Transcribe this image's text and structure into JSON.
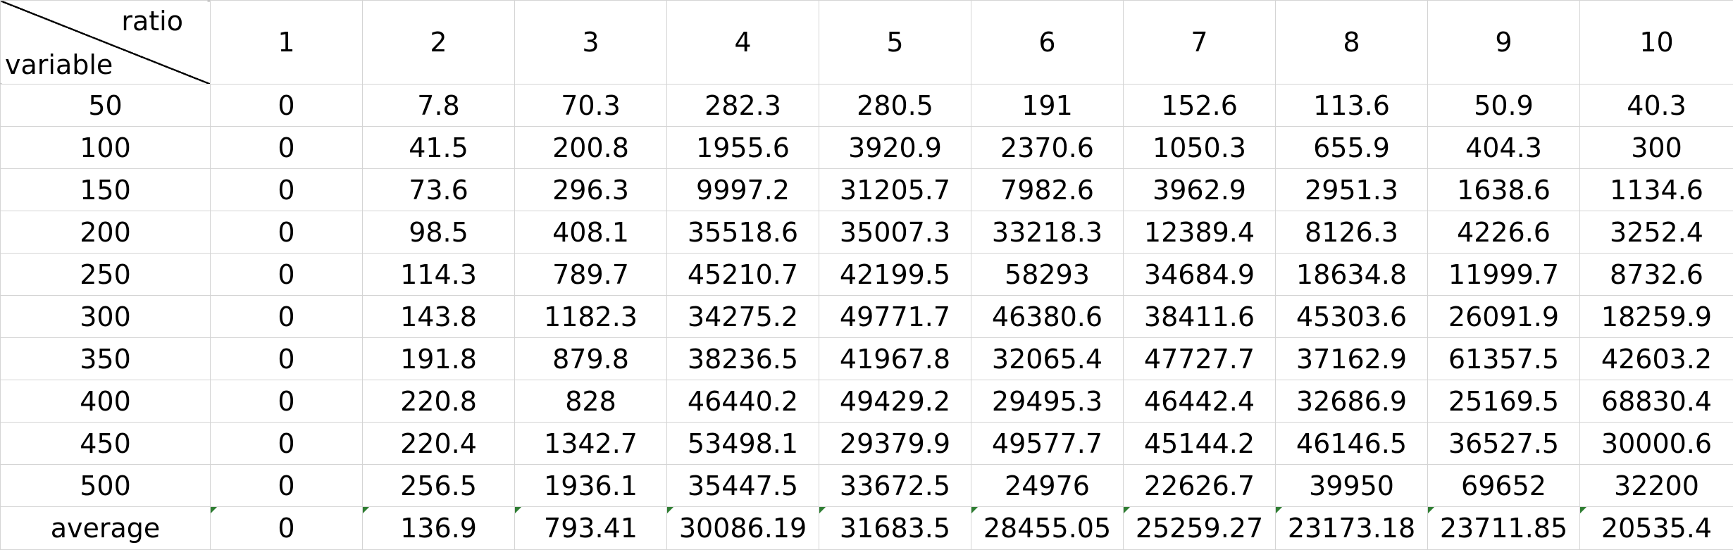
{
  "corner": {
    "top_label": "ratio",
    "bottom_label": "variable"
  },
  "columns": [
    "1",
    "2",
    "3",
    "4",
    "5",
    "6",
    "7",
    "8",
    "9",
    "10"
  ],
  "rows": [
    {
      "label": "50",
      "values": [
        "0",
        "7.8",
        "70.3",
        "282.3",
        "280.5",
        "191",
        "152.6",
        "113.6",
        "50.9",
        "40.3"
      ]
    },
    {
      "label": "100",
      "values": [
        "0",
        "41.5",
        "200.8",
        "1955.6",
        "3920.9",
        "2370.6",
        "1050.3",
        "655.9",
        "404.3",
        "300"
      ]
    },
    {
      "label": "150",
      "values": [
        "0",
        "73.6",
        "296.3",
        "9997.2",
        "31205.7",
        "7982.6",
        "3962.9",
        "2951.3",
        "1638.6",
        "1134.6"
      ]
    },
    {
      "label": "200",
      "values": [
        "0",
        "98.5",
        "408.1",
        "35518.6",
        "35007.3",
        "33218.3",
        "12389.4",
        "8126.3",
        "4226.6",
        "3252.4"
      ]
    },
    {
      "label": "250",
      "values": [
        "0",
        "114.3",
        "789.7",
        "45210.7",
        "42199.5",
        "58293",
        "34684.9",
        "18634.8",
        "11999.7",
        "8732.6"
      ]
    },
    {
      "label": "300",
      "values": [
        "0",
        "143.8",
        "1182.3",
        "34275.2",
        "49771.7",
        "46380.6",
        "38411.6",
        "45303.6",
        "26091.9",
        "18259.9"
      ]
    },
    {
      "label": "350",
      "values": [
        "0",
        "191.8",
        "879.8",
        "38236.5",
        "41967.8",
        "32065.4",
        "47727.7",
        "37162.9",
        "61357.5",
        "42603.2"
      ]
    },
    {
      "label": "400",
      "values": [
        "0",
        "220.8",
        "828",
        "46440.2",
        "49429.2",
        "29495.3",
        "46442.4",
        "32686.9",
        "25169.5",
        "68830.4"
      ]
    },
    {
      "label": "450",
      "values": [
        "0",
        "220.4",
        "1342.7",
        "53498.1",
        "29379.9",
        "49577.7",
        "45144.2",
        "46146.5",
        "36527.5",
        "30000.6"
      ]
    },
    {
      "label": "500",
      "values": [
        "0",
        "256.5",
        "1936.1",
        "35447.5",
        "33672.5",
        "24976",
        "22626.7",
        "39950",
        "69652",
        "32200"
      ]
    }
  ],
  "average": {
    "label": "average",
    "values": [
      "0",
      "136.9",
      "793.41",
      "30086.19",
      "31683.5",
      "28455.05",
      "25259.27",
      "23173.18",
      "23711.85",
      "20535.4"
    ]
  },
  "colors": {
    "gridline": "#d4d4d4",
    "error_flag": "#2e7d32"
  },
  "icons": {
    "cell_flag": "green-triangle-flag-icon"
  }
}
